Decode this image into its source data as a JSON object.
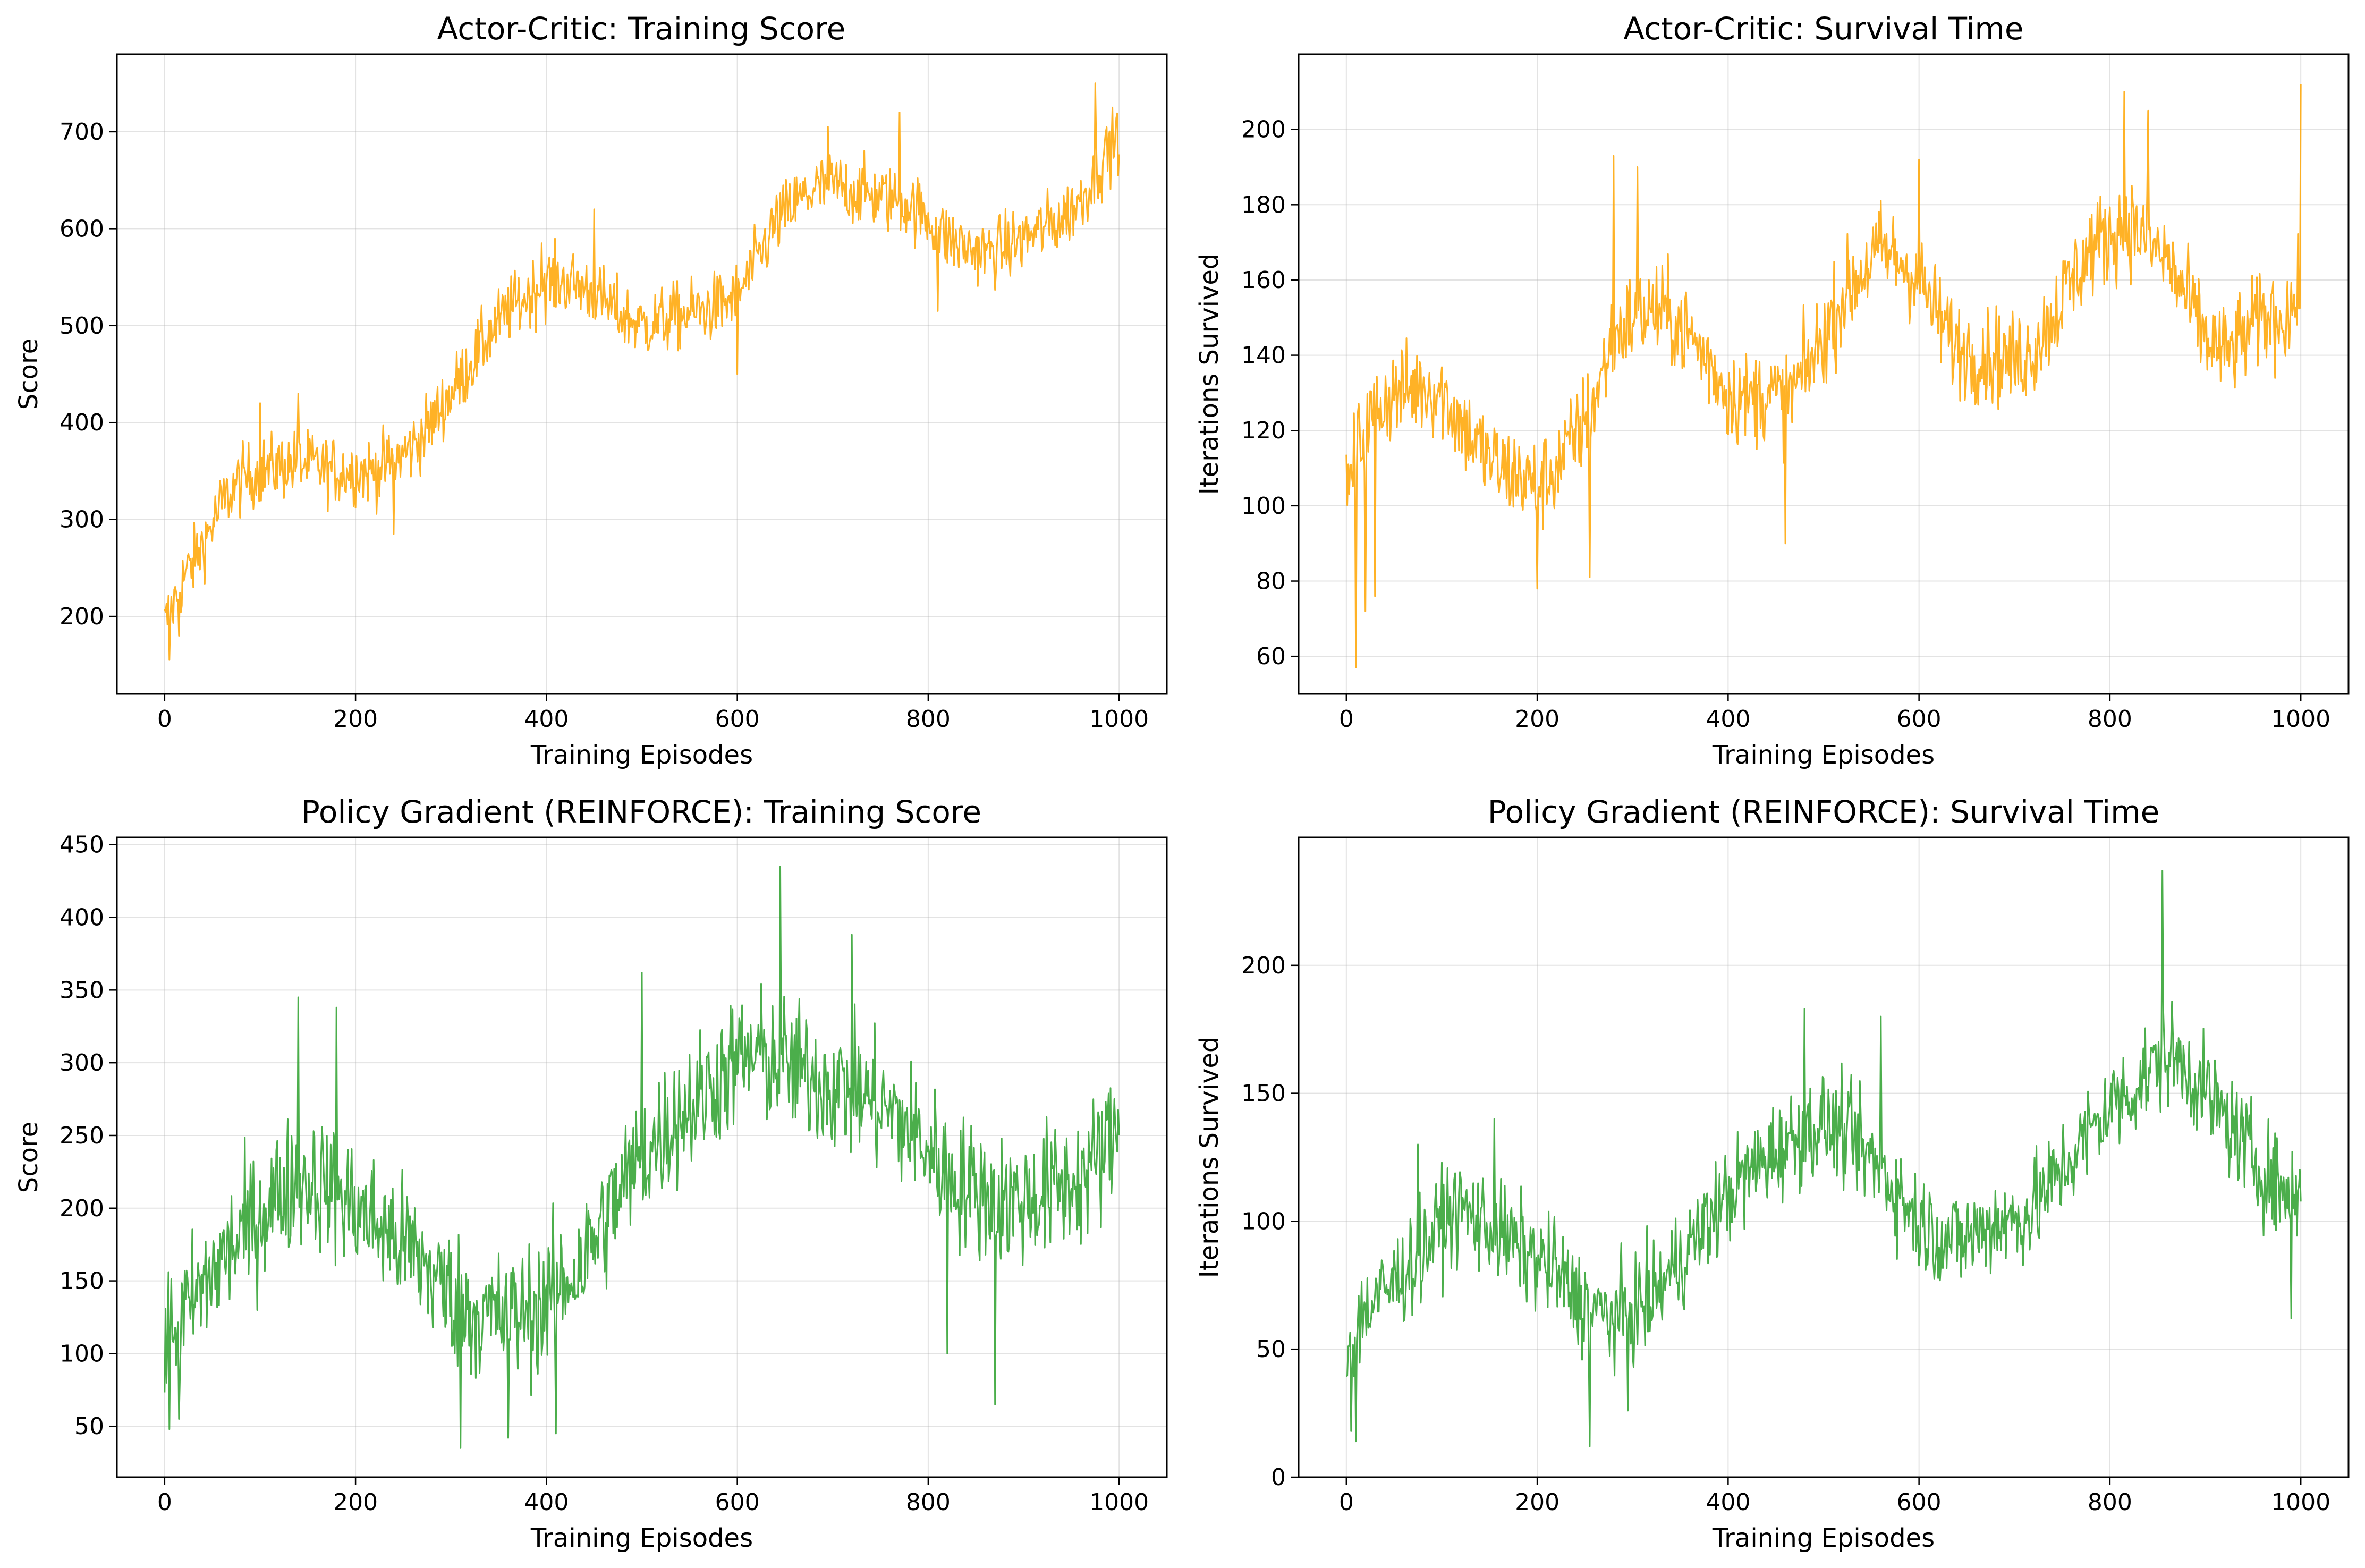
{
  "colors": {
    "actor_critic": "#FFA500",
    "reinforce": "#2CA02C"
  },
  "chart_data": [
    {
      "type": "line",
      "title": "Actor-Critic: Training Score",
      "xlabel": "Training Episodes",
      "ylabel": "Score",
      "xlim": [
        -50,
        1050
      ],
      "ylim": [
        120,
        780
      ],
      "xticks": [
        0,
        200,
        400,
        600,
        800,
        1000
      ],
      "yticks": [
        200,
        300,
        400,
        500,
        600,
        700
      ],
      "grid": true,
      "color_key": "actor_critic",
      "series": [
        {
          "x": [
            0,
            10,
            20,
            30,
            40,
            50,
            60,
            70,
            80,
            90,
            100,
            120,
            140,
            160,
            180,
            200,
            220,
            240,
            260,
            280,
            300,
            320,
            340,
            360,
            380,
            400,
            420,
            440,
            460,
            480,
            500,
            520,
            540,
            560,
            580,
            600,
            620,
            640,
            660,
            680,
            700,
            720,
            740,
            760,
            780,
            800,
            820,
            840,
            860,
            880,
            900,
            920,
            940,
            960,
            980,
            1000
          ],
          "values": [
            190,
            215,
            240,
            255,
            275,
            295,
            315,
            330,
            340,
            345,
            350,
            355,
            358,
            355,
            350,
            350,
            350,
            360,
            375,
            400,
            430,
            460,
            490,
            515,
            530,
            545,
            545,
            540,
            525,
            510,
            500,
            505,
            510,
            515,
            520,
            530,
            565,
            605,
            625,
            640,
            645,
            640,
            635,
            630,
            625,
            610,
            590,
            580,
            575,
            580,
            590,
            600,
            610,
            630,
            665,
            700
          ],
          "noise": 30,
          "spikes": [
            [
              5,
              155
            ],
            [
              15,
              180
            ],
            [
              100,
              420
            ],
            [
              140,
              430
            ],
            [
              240,
              285
            ],
            [
              395,
              585
            ],
            [
              450,
              620
            ],
            [
              600,
              450
            ],
            [
              695,
              705
            ],
            [
              770,
              720
            ],
            [
              810,
              515
            ],
            [
              975,
              750
            ],
            [
              985,
              690
            ]
          ]
        }
      ]
    },
    {
      "type": "line",
      "title": "Actor-Critic: Survival Time",
      "xlabel": "Training Episodes",
      "ylabel": "Iterations Survived",
      "xlim": [
        -50,
        1050
      ],
      "ylim": [
        50,
        220
      ],
      "xticks": [
        0,
        200,
        400,
        600,
        800,
        1000
      ],
      "yticks": [
        60,
        80,
        100,
        120,
        140,
        160,
        180,
        200
      ],
      "grid": true,
      "color_key": "actor_critic",
      "series": [
        {
          "x": [
            0,
            10,
            20,
            30,
            40,
            50,
            60,
            80,
            100,
            120,
            140,
            160,
            180,
            200,
            220,
            240,
            260,
            280,
            300,
            320,
            340,
            360,
            380,
            400,
            420,
            440,
            460,
            480,
            500,
            520,
            540,
            560,
            580,
            600,
            620,
            640,
            660,
            680,
            700,
            720,
            740,
            760,
            780,
            800,
            820,
            840,
            860,
            880,
            900,
            920,
            940,
            960,
            980,
            1000
          ],
          "values": [
            100,
            115,
            120,
            125,
            128,
            130,
            130,
            132,
            130,
            122,
            115,
            110,
            108,
            105,
            110,
            118,
            128,
            145,
            150,
            152,
            150,
            145,
            138,
            130,
            128,
            130,
            128,
            135,
            145,
            155,
            162,
            168,
            165,
            160,
            150,
            142,
            140,
            140,
            138,
            142,
            150,
            160,
            168,
            172,
            175,
            170,
            165,
            155,
            145,
            140,
            145,
            150,
            150,
            155
          ],
          "noise": 11,
          "spikes": [
            [
              10,
              57
            ],
            [
              20,
              72
            ],
            [
              30,
              76
            ],
            [
              200,
              78
            ],
            [
              255,
              81
            ],
            [
              280,
              193
            ],
            [
              305,
              190
            ],
            [
              460,
              90
            ],
            [
              600,
              192
            ],
            [
              815,
              210
            ],
            [
              840,
              205
            ],
            [
              1000,
              212
            ]
          ]
        }
      ]
    },
    {
      "type": "line",
      "title": "Policy Gradient (REINFORCE): Training Score",
      "xlabel": "Training Episodes",
      "ylabel": "Score",
      "xlim": [
        -50,
        1050
      ],
      "ylim": [
        15,
        455
      ],
      "xticks": [
        0,
        200,
        400,
        600,
        800,
        1000
      ],
      "yticks": [
        50,
        100,
        150,
        200,
        250,
        300,
        350,
        400,
        450
      ],
      "grid": true,
      "color_key": "reinforce",
      "series": [
        {
          "x": [
            0,
            20,
            40,
            60,
            80,
            100,
            120,
            140,
            160,
            180,
            200,
            220,
            240,
            260,
            280,
            300,
            320,
            340,
            360,
            380,
            400,
            420,
            440,
            460,
            480,
            500,
            520,
            540,
            560,
            580,
            600,
            620,
            640,
            660,
            680,
            700,
            720,
            740,
            760,
            780,
            800,
            820,
            840,
            860,
            880,
            900,
            920,
            940,
            960,
            980,
            1000
          ],
          "values": [
            110,
            125,
            145,
            165,
            180,
            195,
            210,
            220,
            218,
            210,
            200,
            190,
            180,
            170,
            155,
            140,
            130,
            125,
            125,
            128,
            135,
            150,
            165,
            190,
            215,
            235,
            250,
            265,
            275,
            290,
            300,
            305,
            300,
            295,
            290,
            285,
            280,
            275,
            265,
            255,
            240,
            225,
            215,
            210,
            205,
            205,
            210,
            215,
            220,
            235,
            255
          ],
          "noise": 40,
          "spikes": [
            [
              5,
              48
            ],
            [
              15,
              55
            ],
            [
              140,
              345
            ],
            [
              180,
              338
            ],
            [
              310,
              35
            ],
            [
              360,
              42
            ],
            [
              410,
              45
            ],
            [
              500,
              362
            ],
            [
              645,
              435
            ],
            [
              720,
              388
            ],
            [
              820,
              100
            ],
            [
              870,
              65
            ],
            [
              1000,
              250
            ]
          ]
        }
      ]
    },
    {
      "type": "line",
      "title": "Policy Gradient (REINFORCE): Survival Time",
      "xlabel": "Training Episodes",
      "ylabel": "Iterations Survived",
      "xlim": [
        -50,
        1050
      ],
      "ylim": [
        0,
        250
      ],
      "xticks": [
        0,
        200,
        400,
        600,
        800,
        1000
      ],
      "yticks": [
        0,
        50,
        100,
        150,
        200
      ],
      "grid": true,
      "color_key": "reinforce",
      "series": [
        {
          "x": [
            0,
            20,
            40,
            60,
            80,
            100,
            120,
            140,
            160,
            180,
            200,
            220,
            240,
            260,
            280,
            300,
            320,
            340,
            360,
            380,
            400,
            420,
            440,
            460,
            480,
            500,
            520,
            540,
            560,
            580,
            600,
            620,
            640,
            660,
            680,
            700,
            720,
            740,
            760,
            780,
            800,
            820,
            840,
            860,
            880,
            900,
            920,
            940,
            960,
            980,
            1000
          ],
          "values": [
            50,
            65,
            72,
            80,
            88,
            100,
            105,
            100,
            95,
            90,
            85,
            80,
            70,
            65,
            62,
            65,
            70,
            80,
            90,
            100,
            110,
            118,
            125,
            130,
            135,
            138,
            135,
            128,
            120,
            110,
            100,
            95,
            92,
            95,
            100,
            100,
            105,
            115,
            125,
            135,
            145,
            150,
            158,
            165,
            160,
            150,
            140,
            130,
            120,
            112,
            110
          ],
          "noise": 17,
          "spikes": [
            [
              5,
              18
            ],
            [
              10,
              14
            ],
            [
              75,
              130
            ],
            [
              155,
              140
            ],
            [
              255,
              12
            ],
            [
              295,
              26
            ],
            [
              480,
              183
            ],
            [
              560,
              180
            ],
            [
              855,
              237
            ],
            [
              990,
              62
            ]
          ]
        }
      ]
    }
  ]
}
